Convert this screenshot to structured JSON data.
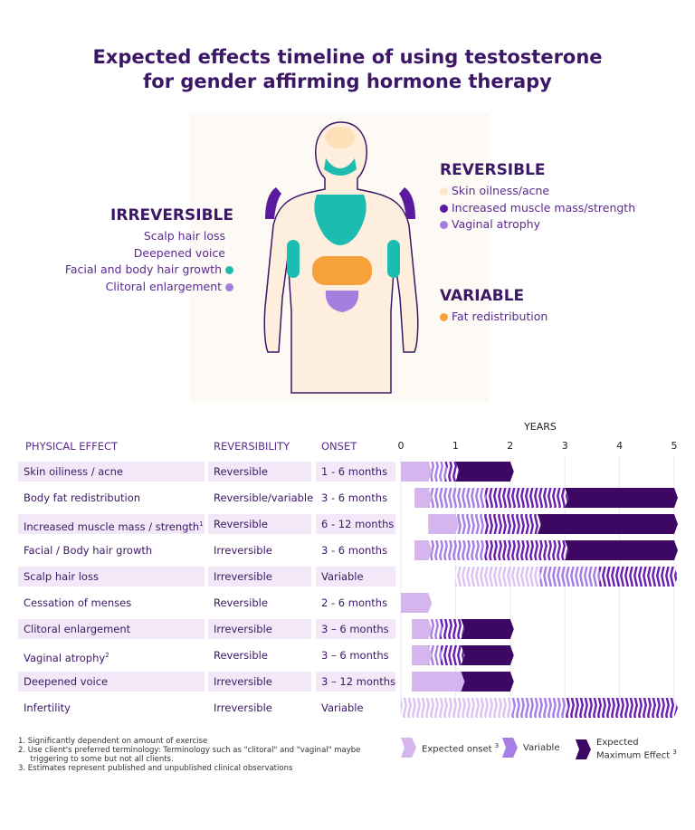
{
  "title": [
    "Expected effects timeline of using testosterone",
    "for gender affirming hormone therapy"
  ],
  "colors": {
    "onset": "#d4b5ee",
    "variable_light": "#dcc3f3",
    "variable": "#a77ee6",
    "variable_dark": "#6a1fb0",
    "max": "#3d0764",
    "teal": "#1dbcb0",
    "orange": "#f7a13a",
    "skin": "#fde7c8",
    "lavender": "#a57fe0",
    "purple": "#5a1a9e",
    "title": "#3b1766"
  },
  "irreversible": {
    "heading": "IRREVERSIBLE",
    "items": [
      {
        "label": "Scalp hair loss"
      },
      {
        "label": "Deepened voice"
      },
      {
        "label": "Facial and body hair growth",
        "dot": "#1dbcb0"
      },
      {
        "label": "Clitoral enlargement",
        "dot": "#a57fe0"
      }
    ]
  },
  "reversible": {
    "heading": "REVERSIBLE",
    "items": [
      {
        "label": "Skin oilness/acne",
        "dot": "#fde7c8"
      },
      {
        "label": "Increased muscle mass/strength",
        "dot": "#5a1a9e"
      },
      {
        "label": "Vaginal atrophy",
        "dot": "#a57fe0"
      }
    ]
  },
  "variable": {
    "heading": "VARIABLE",
    "items": [
      {
        "label": "Fat redistribution",
        "dot": "#f7a13a"
      }
    ]
  },
  "table": {
    "headers": [
      "PHYSICAL EFFECT",
      "REVERSIBILITY",
      "ONSET"
    ]
  },
  "chart_data": {
    "type": "bar",
    "xlabel": "YEARS",
    "xlim": [
      0,
      5
    ],
    "xticks": [
      "0",
      "1",
      "2",
      "3",
      "4",
      "5"
    ],
    "grid": true,
    "rows": [
      {
        "effect": "Skin oiliness / acne",
        "reversibility": "Reversible",
        "onset": "1 - 6 months",
        "segments": [
          [
            "onset",
            0,
            0.5
          ],
          [
            "variable",
            0.5,
            0.8
          ],
          [
            "variable_dark",
            0.8,
            1
          ],
          [
            "max",
            1,
            2
          ]
        ]
      },
      {
        "effect": "Body fat redistribution",
        "reversibility": "Reversible/variable",
        "onset": "3 - 6 months",
        "segments": [
          [
            "onset",
            0.25,
            0.5
          ],
          [
            "variable",
            0.5,
            1.5
          ],
          [
            "variable_dark",
            1.5,
            3
          ],
          [
            "max",
            3,
            5
          ]
        ]
      },
      {
        "effect": "Increased muscle mass / strength",
        "sup": "1",
        "reversibility": "Reversible",
        "onset": "6 - 12 months",
        "segments": [
          [
            "onset",
            0.5,
            1
          ],
          [
            "variable",
            1,
            1.5
          ],
          [
            "variable_dark",
            1.5,
            2.5
          ],
          [
            "max",
            2.5,
            5
          ]
        ]
      },
      {
        "effect": "Facial / Body hair growth",
        "reversibility": "Irreversible",
        "onset": "3 - 6 months",
        "segments": [
          [
            "onset",
            0.25,
            0.5
          ],
          [
            "variable",
            0.5,
            1.5
          ],
          [
            "variable_dark",
            1.5,
            3
          ],
          [
            "max",
            3,
            5
          ]
        ]
      },
      {
        "effect": "Scalp hair loss",
        "reversibility": "Irreversible",
        "onset": "Variable",
        "segments": [
          [
            "variable_light",
            1,
            2.5
          ],
          [
            "variable",
            2.5,
            3.6
          ],
          [
            "variable_dark",
            3.6,
            5
          ]
        ]
      },
      {
        "effect": "Cessation of menses",
        "reversibility": "Reversible",
        "onset": "2 - 6 months",
        "segments": [
          [
            "onset",
            0,
            0.5
          ]
        ]
      },
      {
        "effect": "Clitoral enlargement",
        "reversibility": "Irreversible",
        "onset": "3 – 6 months",
        "segments": [
          [
            "onset",
            0.2,
            0.5
          ],
          [
            "variable",
            0.5,
            0.7
          ],
          [
            "variable_dark",
            0.7,
            1.1
          ],
          [
            "max",
            1.1,
            2
          ]
        ]
      },
      {
        "effect": "Vaginal atrophy",
        "sup": "2",
        "reversibility": "Reversible",
        "onset": "3 – 6 months",
        "segments": [
          [
            "onset",
            0.2,
            0.5
          ],
          [
            "variable",
            0.5,
            0.7
          ],
          [
            "variable_dark",
            0.7,
            1.1
          ],
          [
            "max",
            1.1,
            2
          ]
        ]
      },
      {
        "effect": "Deepened voice",
        "reversibility": "Irreversible",
        "onset": "3 – 12 months",
        "segments": [
          [
            "onset",
            0.2,
            1.1
          ],
          [
            "max",
            1.1,
            2
          ]
        ]
      },
      {
        "effect": "Infertility",
        "reversibility": "Irreversible",
        "onset": "Variable",
        "segments": [
          [
            "variable_light",
            0,
            2
          ],
          [
            "variable",
            2,
            3
          ],
          [
            "variable_dark",
            3,
            5
          ]
        ]
      }
    ],
    "legend": [
      {
        "label": "Expected onset",
        "sup": "3",
        "type": "onset"
      },
      {
        "label": "Variable",
        "type": "variable"
      },
      {
        "label": "Expected Maximum Effect",
        "sup": "3",
        "type": "max"
      }
    ]
  },
  "footnotes": [
    "1.  Significantly dependent on amount  of exercise",
    "2.  Use client's preferred terminology: Terminology such as \"clitoral\" and \"vaginal\" maybe",
    "     triggering to some but not all clients.",
    "3.  Estimates represent published and unpublished clinical observations"
  ]
}
